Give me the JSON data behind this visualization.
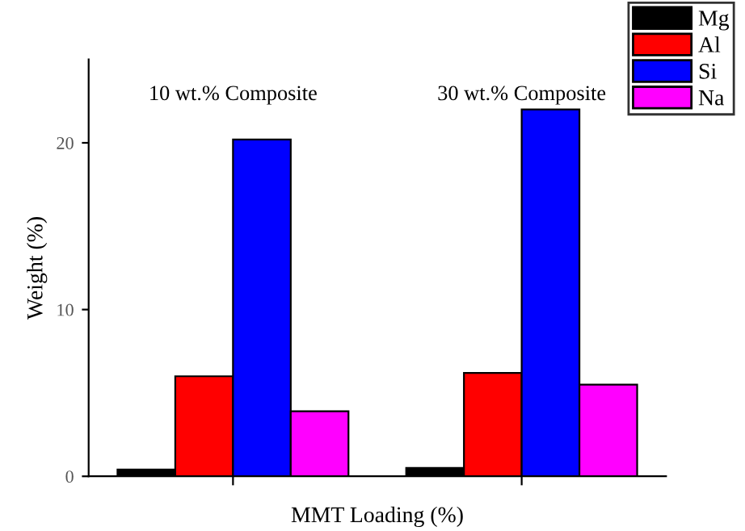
{
  "chart_data": {
    "type": "bar",
    "xlabel": "MMT Loading (%)",
    "ylabel": "Weight (%)",
    "categories": [
      null,
      null
    ],
    "series": [
      {
        "name": "Mg",
        "color": "#000000",
        "values": [
          0.4,
          0.5
        ]
      },
      {
        "name": "Al",
        "color": "#ff0000",
        "values": [
          6.0,
          6.2
        ]
      },
      {
        "name": "Si",
        "color": "#0000ff",
        "values": [
          20.2,
          22.0
        ]
      },
      {
        "name": "Na",
        "color": "#ff00ff",
        "values": [
          3.9,
          5.5
        ]
      }
    ],
    "annotations": [
      "10 wt.% Composite",
      "30 wt.% Composite"
    ],
    "ylim": [
      0,
      25
    ],
    "yticks": [
      0,
      10,
      20
    ],
    "grid": false,
    "legend": "top right"
  }
}
